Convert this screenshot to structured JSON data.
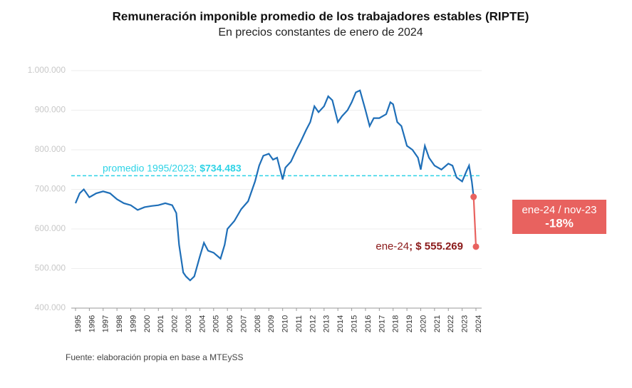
{
  "chart_data": {
    "type": "line",
    "title": "Remuneración imponible promedio de los trabajadores estables (RIPTE)",
    "subtitle": "En precios constantes de enero de 2024",
    "source": "Fuente: elaboración propia en base a MTEySS",
    "xlim": [
      1995,
      2024
    ],
    "xticks": [
      1995,
      1996,
      1997,
      1998,
      1999,
      2000,
      2001,
      2002,
      2003,
      2004,
      2005,
      2006,
      2007,
      2008,
      2009,
      2010,
      2011,
      2012,
      2013,
      2014,
      2015,
      2016,
      2017,
      2018,
      2019,
      2020,
      2021,
      2022,
      2023,
      2024
    ],
    "ylim": [
      400000,
      1000000
    ],
    "yticks": [
      {
        "value": 400000,
        "label": "400.000"
      },
      {
        "value": 500000,
        "label": "500.000"
      },
      {
        "value": 600000,
        "label": "600.000"
      },
      {
        "value": 700000,
        "label": "700.000"
      },
      {
        "value": 800000,
        "label": "800.000"
      },
      {
        "value": 900000,
        "label": "900.000"
      },
      {
        "value": 1000000,
        "label": "1.000.000"
      }
    ],
    "grid": true,
    "series": [
      {
        "color": "#1f6fb8",
        "x": [
          1995.0,
          1995.3,
          1995.6,
          1996.0,
          1996.5,
          1997.0,
          1997.5,
          1998.0,
          1998.5,
          1999.0,
          1999.5,
          2000.0,
          2000.5,
          2001.0,
          2001.5,
          2002.0,
          2002.3,
          2002.5,
          2002.8,
          2003.0,
          2003.3,
          2003.6,
          2004.0,
          2004.3,
          2004.6,
          2005.0,
          2005.5,
          2005.8,
          2006.0,
          2006.5,
          2007.0,
          2007.5,
          2008.0,
          2008.3,
          2008.6,
          2009.0,
          2009.3,
          2009.6,
          2010.0,
          2010.2,
          2010.6,
          2011.0,
          2011.3,
          2011.7,
          2012.0,
          2012.3,
          2012.6,
          2013.0,
          2013.3,
          2013.6,
          2014.0,
          2014.3,
          2014.7,
          2015.0,
          2015.3,
          2015.6,
          2016.0,
          2016.3,
          2016.6,
          2017.0,
          2017.5,
          2017.8,
          2018.0,
          2018.3,
          2018.6,
          2019.0,
          2019.4,
          2019.8,
          2020.0,
          2020.3,
          2020.6,
          2021.0,
          2021.5,
          2022.0,
          2022.3,
          2022.6,
          2023.0,
          2023.3,
          2023.5,
          2023.7,
          2023.83
        ],
        "values": [
          665000,
          690000,
          700000,
          680000,
          690000,
          695000,
          690000,
          675000,
          665000,
          660000,
          648000,
          655000,
          658000,
          660000,
          665000,
          660000,
          640000,
          560000,
          490000,
          480000,
          470000,
          480000,
          530000,
          565000,
          545000,
          540000,
          525000,
          560000,
          600000,
          620000,
          650000,
          670000,
          720000,
          760000,
          785000,
          790000,
          775000,
          780000,
          725000,
          755000,
          770000,
          800000,
          820000,
          850000,
          870000,
          910000,
          895000,
          910000,
          935000,
          925000,
          870000,
          885000,
          900000,
          920000,
          945000,
          950000,
          900000,
          860000,
          880000,
          880000,
          890000,
          920000,
          915000,
          870000,
          860000,
          810000,
          800000,
          780000,
          750000,
          810000,
          780000,
          760000,
          750000,
          765000,
          760000,
          730000,
          720000,
          745000,
          760000,
          720000,
          681000
        ]
      },
      {
        "color": "#e8625f",
        "x": [
          2023.83,
          2024.0
        ],
        "values": [
          681000,
          555269
        ]
      }
    ],
    "average": {
      "value": 734483,
      "label": "promedio 1995/2023; ",
      "value_label": "$734.483",
      "color": "#2ed3e6"
    },
    "end_label": {
      "label": "ene-24",
      "value_label": "; $ 555.269",
      "color": "#8b1a1a"
    },
    "change_box": {
      "label": "ene-24 / nov-23",
      "value_label": "-18%",
      "color": "#e8625f"
    }
  }
}
